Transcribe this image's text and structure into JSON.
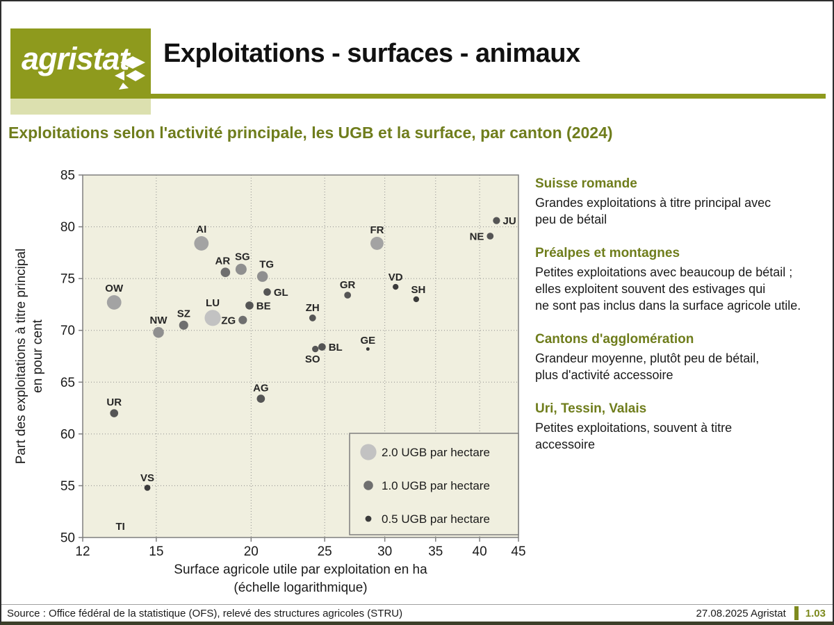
{
  "header": {
    "logo_text": "agristat",
    "title": "Exploitations - surfaces - animaux"
  },
  "subtitle": "Exploitations selon l'activité principale, les UGB et la surface, par canton (2024)",
  "colors": {
    "brand_olive": "#8e9a1d",
    "light_olive": "#dce0af",
    "heading_olive": "#6f7d1c",
    "plot_background": "#f0efdf",
    "plot_border": "#7f7f7f",
    "gridline": "#8c8c8c"
  },
  "chart_data": {
    "type": "scatter",
    "x_scale": "log",
    "xlim": [
      12,
      45
    ],
    "ylim": [
      50,
      85
    ],
    "x_ticks": [
      12,
      15,
      20,
      25,
      30,
      35,
      40,
      45
    ],
    "y_ticks": [
      50,
      55,
      60,
      65,
      70,
      75,
      80,
      85
    ],
    "grid": "dotted",
    "xlabel_line1": "Surface agricole utile par exploitation en ha",
    "xlabel_line2": "(échelle logarithmique)",
    "ylabel_line1": "Part des exploitations à titre principal",
    "ylabel_line2": "en pour cent",
    "size_legend": {
      "position": "inside bottom-right",
      "entries": [
        {
          "ugb": 2.0,
          "label": "2.0 UGB par hectare"
        },
        {
          "ugb": 1.0,
          "label": "1.0 UGB par hectare"
        },
        {
          "ugb": 0.5,
          "label": "0.5 UGB par hectare"
        }
      ]
    },
    "points": [
      {
        "code": "ZH",
        "x": 24.1,
        "y": 71.2,
        "ugb": 0.6,
        "lp": "above"
      },
      {
        "code": "BE",
        "x": 19.9,
        "y": 72.4,
        "ugb": 0.8,
        "lp": "right"
      },
      {
        "code": "LU",
        "x": 17.8,
        "y": 71.2,
        "ugb": 2.0,
        "lp": "above"
      },
      {
        "code": "UR",
        "x": 13.2,
        "y": 62.0,
        "ugb": 0.8,
        "lp": "above"
      },
      {
        "code": "SZ",
        "x": 16.3,
        "y": 70.5,
        "ugb": 0.95,
        "lp": "above"
      },
      {
        "code": "OW",
        "x": 13.2,
        "y": 72.7,
        "ugb": 1.75,
        "lp": "above"
      },
      {
        "code": "NW",
        "x": 15.1,
        "y": 69.8,
        "ugb": 1.2,
        "lp": "above"
      },
      {
        "code": "GL",
        "x": 21.0,
        "y": 73.7,
        "ugb": 0.7,
        "lp": "right"
      },
      {
        "code": "ZG",
        "x": 19.5,
        "y": 71.0,
        "ugb": 0.85,
        "lp": "left"
      },
      {
        "code": "FR",
        "x": 29.3,
        "y": 78.4,
        "ugb": 1.55,
        "lp": "above"
      },
      {
        "code": "SO",
        "x": 24.3,
        "y": 68.2,
        "ugb": 0.55,
        "lp": "below"
      },
      {
        "code": "BL",
        "x": 24.8,
        "y": 68.4,
        "ugb": 0.7,
        "lp": "right"
      },
      {
        "code": "SH",
        "x": 33.0,
        "y": 73.0,
        "ugb": 0.45,
        "lp": "above",
        "dx": 3
      },
      {
        "code": "AI",
        "x": 17.2,
        "y": 78.4,
        "ugb": 1.75,
        "lp": "above"
      },
      {
        "code": "AR",
        "x": 18.5,
        "y": 75.6,
        "ugb": 1.0,
        "lp": "above",
        "dx": -4
      },
      {
        "code": "SG",
        "x": 19.4,
        "y": 75.9,
        "ugb": 1.25,
        "lp": "above",
        "dx": 2
      },
      {
        "code": "GR",
        "x": 26.8,
        "y": 73.4,
        "ugb": 0.6,
        "lp": "above"
      },
      {
        "code": "AG",
        "x": 20.6,
        "y": 63.4,
        "ugb": 0.8,
        "lp": "above"
      },
      {
        "code": "TG",
        "x": 20.7,
        "y": 75.2,
        "ugb": 1.2,
        "lp": "above",
        "dx": 6
      },
      {
        "code": "TI",
        "x": 13.45,
        "y": 50.75,
        "ugb": 0.2,
        "lp": "label_only"
      },
      {
        "code": "VD",
        "x": 31.0,
        "y": 74.2,
        "ugb": 0.45,
        "lp": "above"
      },
      {
        "code": "VS",
        "x": 14.6,
        "y": 54.8,
        "ugb": 0.5,
        "lp": "above"
      },
      {
        "code": "NE",
        "x": 41.3,
        "y": 79.1,
        "ugb": 0.6,
        "lp": "left"
      },
      {
        "code": "GE",
        "x": 28.5,
        "y": 68.2,
        "ugb": 0.1,
        "lp": "above"
      },
      {
        "code": "JU",
        "x": 42.1,
        "y": 80.6,
        "ugb": 0.65,
        "lp": "right"
      }
    ]
  },
  "annotations": [
    {
      "heading": "Suisse romande",
      "body": "Grandes exploitations à titre principal avec\npeu de bétail"
    },
    {
      "heading": "Préalpes et montagnes",
      "body": "Petites exploitations avec beaucoup de bétail ;\nelles exploitent souvent des estivages qui\nne sont pas inclus dans la surface agricole utile."
    },
    {
      "heading": "Cantons d'agglomération",
      "body": "Grandeur moyenne, plutôt peu de bétail,\nplus d'activité accessoire"
    },
    {
      "heading": "Uri, Tessin, Valais",
      "body": "Petites exploitations, souvent à titre\naccessoire"
    }
  ],
  "footer": {
    "source": "Source : Office fédéral de la statistique (OFS), relevé des structures agricoles (STRU)",
    "date_label": "27.08.2025 Agristat",
    "page_number": "1.03"
  }
}
